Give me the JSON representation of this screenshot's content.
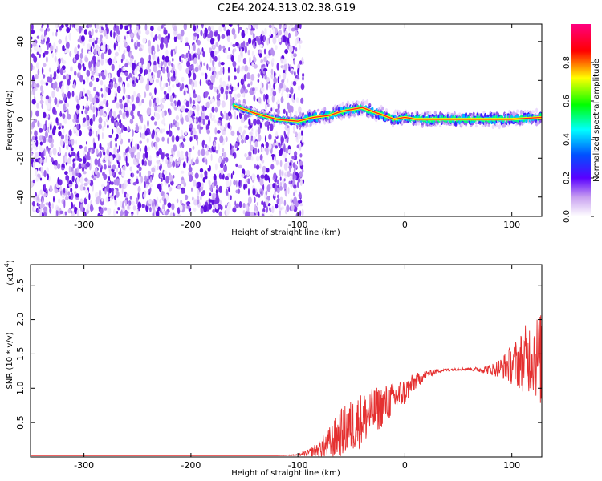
{
  "title": "C2E4.2024.313.02.38.G19",
  "chart_data": [
    {
      "type": "heatmap",
      "xlabel": "Height of straight line (km)",
      "ylabel": "Frequency (Hz)",
      "xlim": [
        -350,
        128
      ],
      "ylim": [
        -50,
        49
      ],
      "x_ticks": [
        -300,
        -200,
        -100,
        0,
        100
      ],
      "y_ticks": [
        -40,
        -20,
        0,
        20,
        40
      ],
      "x_tick_labels": [
        "-300",
        "-200",
        "-100",
        "0",
        "100"
      ],
      "y_tick_labels": [
        "-40",
        "-20",
        "0",
        "20",
        "40"
      ],
      "noise_region_x": [
        -350,
        -95
      ],
      "signal_track": [
        {
          "x": -160,
          "y": 7
        },
        {
          "x": -140,
          "y": 3
        },
        {
          "x": -120,
          "y": 0
        },
        {
          "x": -100,
          "y": -1
        },
        {
          "x": -85,
          "y": 1
        },
        {
          "x": -70,
          "y": 2
        },
        {
          "x": -60,
          "y": 4
        },
        {
          "x": -50,
          "y": 5
        },
        {
          "x": -40,
          "y": 6
        },
        {
          "x": -30,
          "y": 4
        },
        {
          "x": -20,
          "y": 2
        },
        {
          "x": -10,
          "y": 0
        },
        {
          "x": 0,
          "y": 1
        },
        {
          "x": 10,
          "y": 0
        },
        {
          "x": 50,
          "y": 0
        },
        {
          "x": 100,
          "y": 0
        },
        {
          "x": 128,
          "y": 1
        }
      ],
      "colorbar": {
        "label": "Normalized spectral amplitude",
        "range": [
          0,
          1
        ],
        "ticks": [
          0.0,
          0.2,
          0.4,
          0.6,
          0.8
        ],
        "tick_labels": [
          "0.0",
          "0.2",
          "0.4",
          "0.6",
          "0.8"
        ],
        "colors": [
          "#ffffff",
          "#8a2be2",
          "#0000ff",
          "#00ffff",
          "#00ff00",
          "#ffff00",
          "#ff0000",
          "#ff00a0"
        ]
      },
      "grid": false
    },
    {
      "type": "line",
      "xlabel": "Height of straight line (km)",
      "ylabel": "SNR (10 * v/v)",
      "y_multiplier_label": "(x10",
      "y_multiplier_exponent": "4",
      "xlim": [
        -350,
        128
      ],
      "ylim": [
        0,
        2.8
      ],
      "x_ticks": [
        -300,
        -200,
        -100,
        0,
        100
      ],
      "y_ticks": [
        0.5,
        1.0,
        1.5,
        2.0,
        2.5
      ],
      "x_tick_labels": [
        "-300",
        "-200",
        "-100",
        "0",
        "100"
      ],
      "y_tick_labels": [
        "0.5",
        "1.0",
        "1.5",
        "2.0",
        "2.5"
      ],
      "line_color": "#e53030",
      "series": [
        {
          "x": [
            -350,
            -300,
            -250,
            -200,
            -150,
            -120,
            -100,
            -90,
            -80,
            -70,
            -60,
            -50,
            -40,
            -30,
            -20,
            -10,
            0,
            10,
            20,
            30,
            40,
            50,
            60,
            70,
            80,
            90,
            100,
            110,
            120,
            128
          ],
          "values": [
            0.02,
            0.02,
            0.02,
            0.02,
            0.02,
            0.02,
            0.03,
            0.06,
            0.12,
            0.2,
            0.35,
            0.45,
            0.55,
            0.65,
            0.75,
            0.85,
            0.95,
            1.1,
            1.2,
            1.25,
            1.27,
            1.28,
            1.28,
            1.27,
            1.27,
            1.3,
            1.35,
            1.4,
            1.5,
            1.4
          ],
          "spread": [
            0,
            0,
            0,
            0,
            0,
            0,
            0.01,
            0.05,
            0.12,
            0.25,
            0.35,
            0.4,
            0.4,
            0.35,
            0.3,
            0.25,
            0.2,
            0.12,
            0.06,
            0.03,
            0.02,
            0.02,
            0.02,
            0.04,
            0.08,
            0.15,
            0.3,
            0.45,
            0.6,
            0.7
          ]
        }
      ],
      "grid": false
    }
  ]
}
